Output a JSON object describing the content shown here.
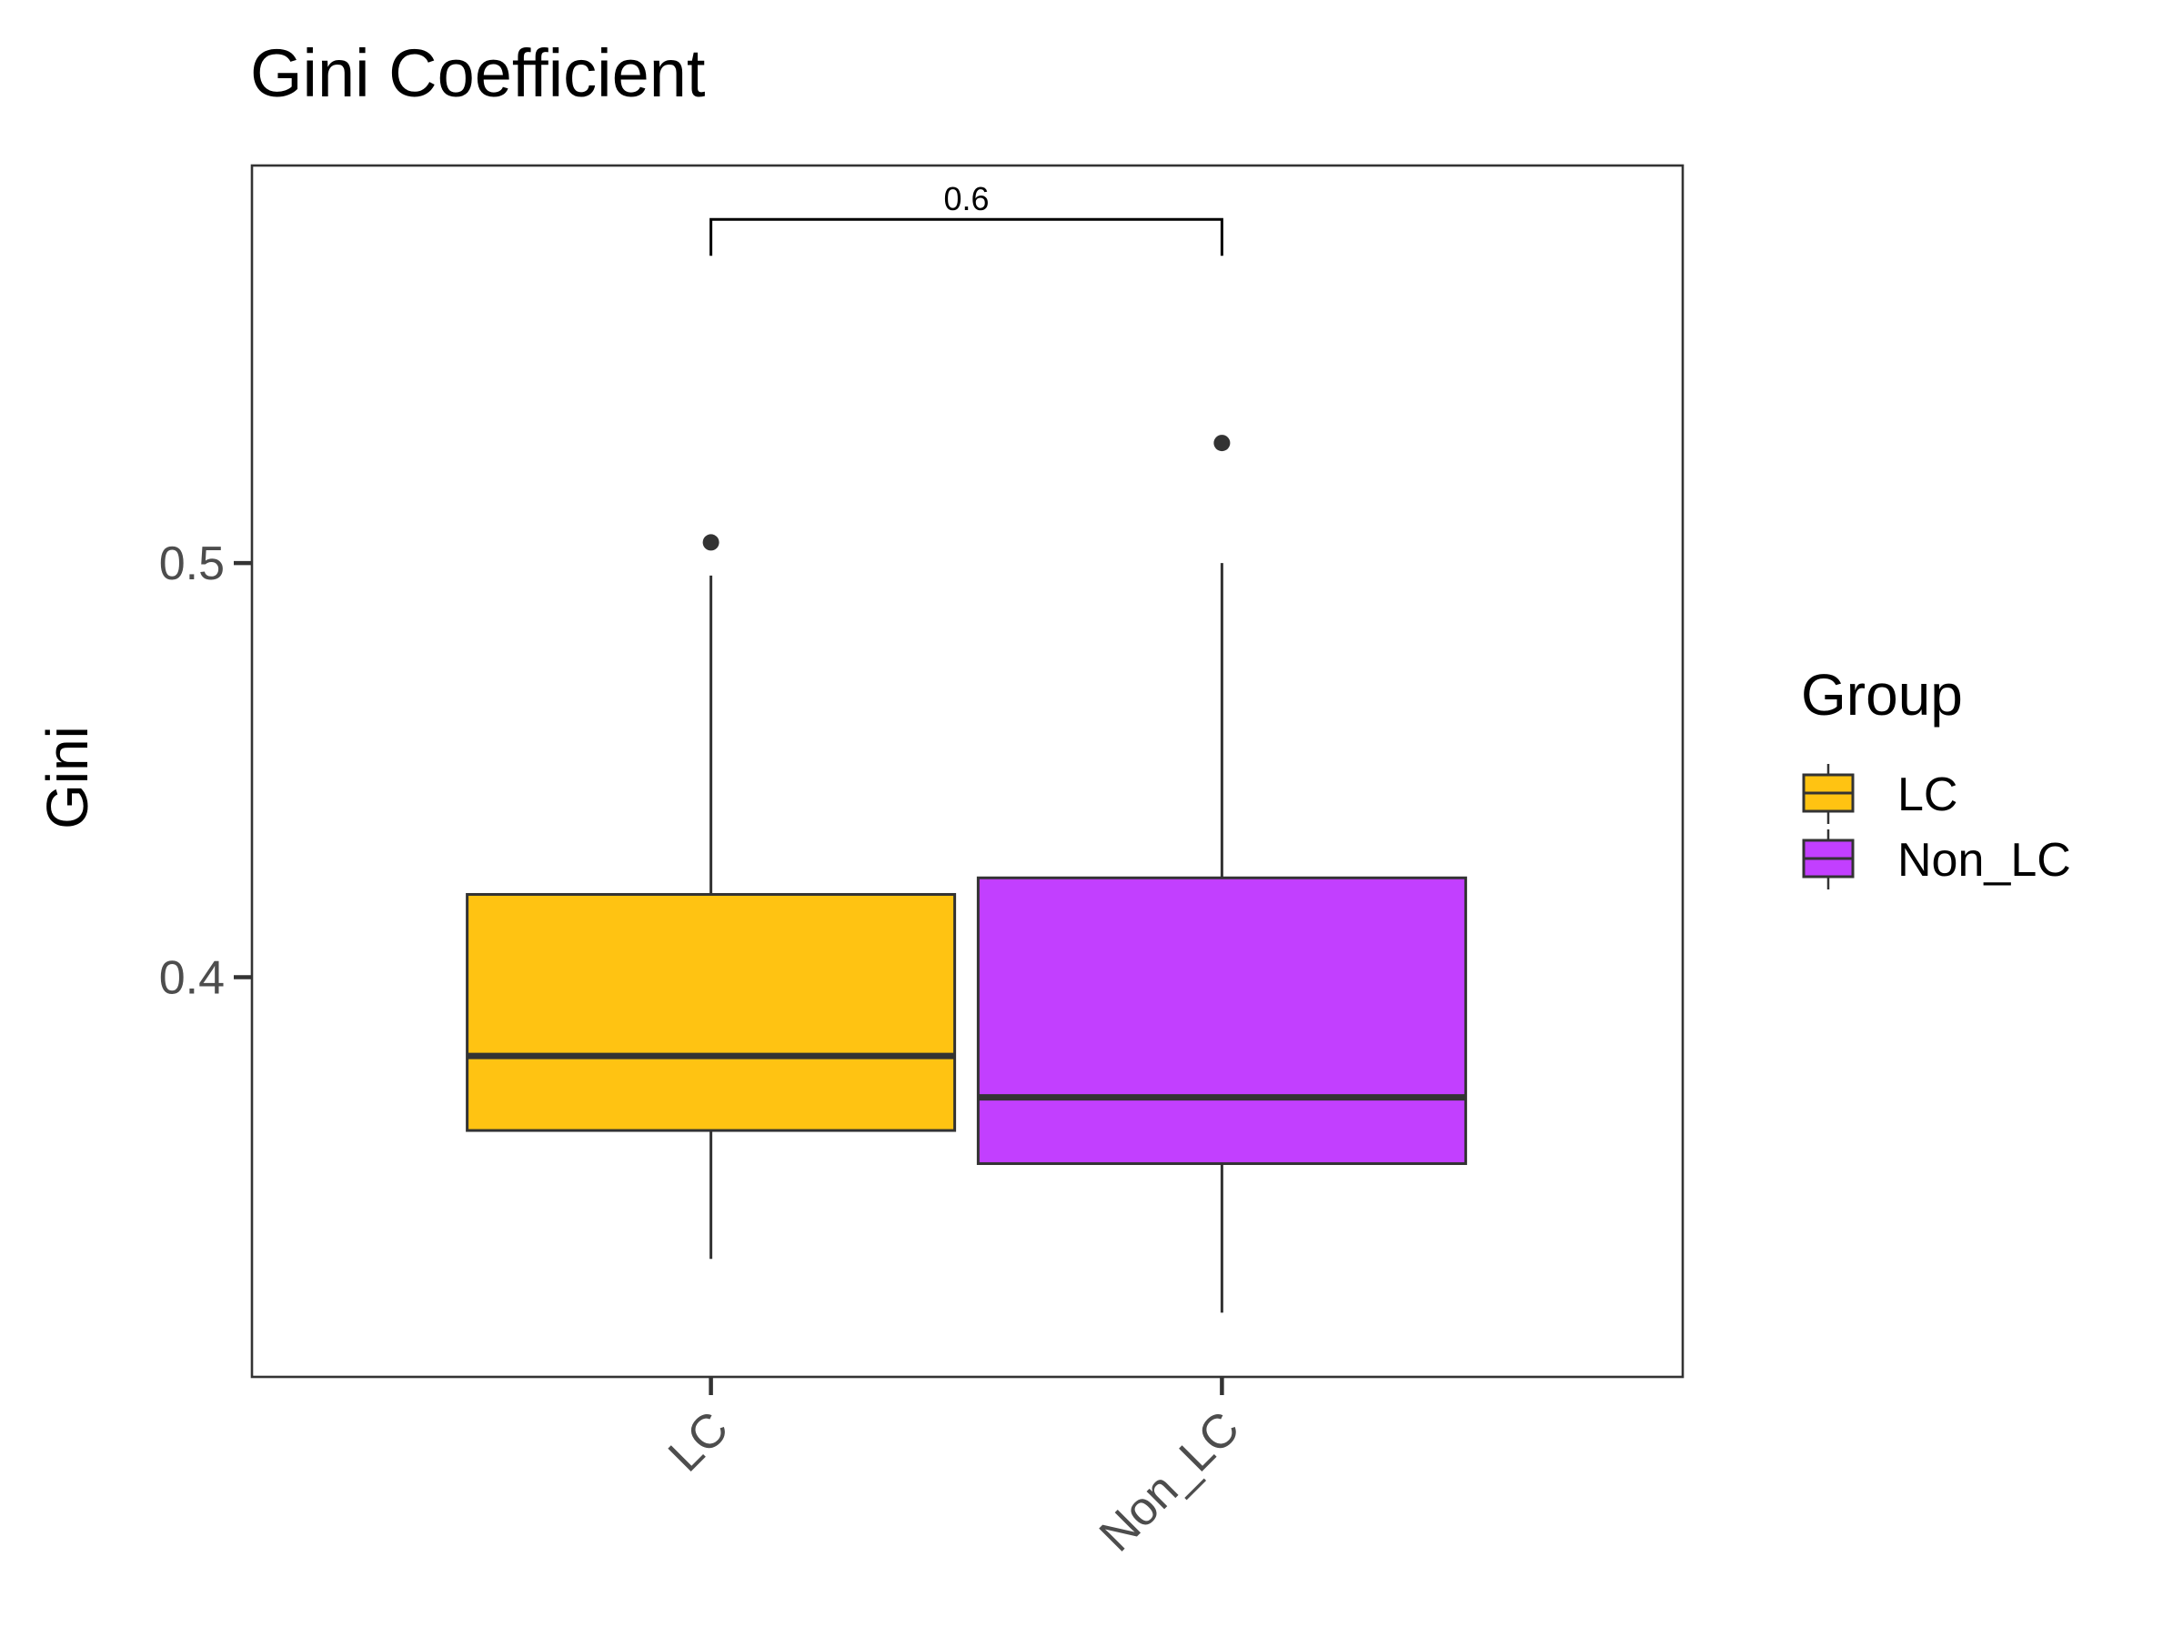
{
  "chart_data": {
    "type": "boxplot",
    "title": "Gini Coefficient",
    "xlabel": "",
    "ylabel": "Gini",
    "ylim": [
      0.3035,
      0.596
    ],
    "y_ticks": [
      0.4,
      0.5
    ],
    "y_tick_labels": [
      "0.4",
      "0.5"
    ],
    "categories": [
      "LC",
      "Non_LC"
    ],
    "boxes": [
      {
        "category": "LC",
        "whisker_low": 0.332,
        "q1": 0.363,
        "median": 0.381,
        "q3": 0.42,
        "whisker_high": 0.497,
        "outliers": [
          0.505
        ],
        "color": "#FFC312"
      },
      {
        "category": "Non_LC",
        "whisker_low": 0.319,
        "q1": 0.355,
        "median": 0.371,
        "q3": 0.424,
        "whisker_high": 0.5,
        "outliers": [
          0.529
        ],
        "color": "#C23FFF"
      }
    ],
    "comparison": {
      "from": "LC",
      "to": "Non_LC",
      "label": "0.6",
      "y": 0.583
    },
    "legend": {
      "title": "Group",
      "placement": "right",
      "items": [
        {
          "label": "LC",
          "color": "#FFC312"
        },
        {
          "label": "Non_LC",
          "color": "#C23FFF"
        }
      ]
    },
    "grid": false
  }
}
